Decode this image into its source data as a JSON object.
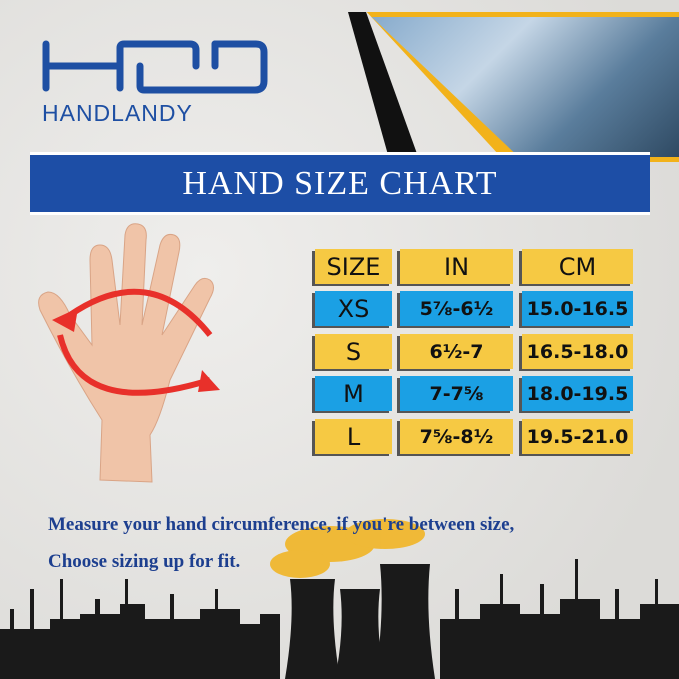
{
  "brand": {
    "logo_mark": "HD",
    "name": "HANDLANDY"
  },
  "banner": {
    "title": "HAND SIZE CHART"
  },
  "colors": {
    "brand_blue": "#1d4ea6",
    "cell_yellow": "#f6c943",
    "cell_blue": "#1ba0e4",
    "accent_red": "#e8302a"
  },
  "table": {
    "headers": [
      "SIZE",
      "IN",
      "CM"
    ],
    "rows": [
      {
        "size": "XS",
        "in": "5⅞-6½",
        "cm": "15.0-16.5"
      },
      {
        "size": "S",
        "in": "6½-7",
        "cm": "16.5-18.0"
      },
      {
        "size": "M",
        "in": "7-7⅝",
        "cm": "18.0-19.5"
      },
      {
        "size": "L",
        "in": "7⅝-8½",
        "cm": "19.5-21.0"
      }
    ]
  },
  "note": {
    "line1": "Measure your hand circumference, if you're between size,",
    "line2": "Choose sizing up for fit."
  }
}
